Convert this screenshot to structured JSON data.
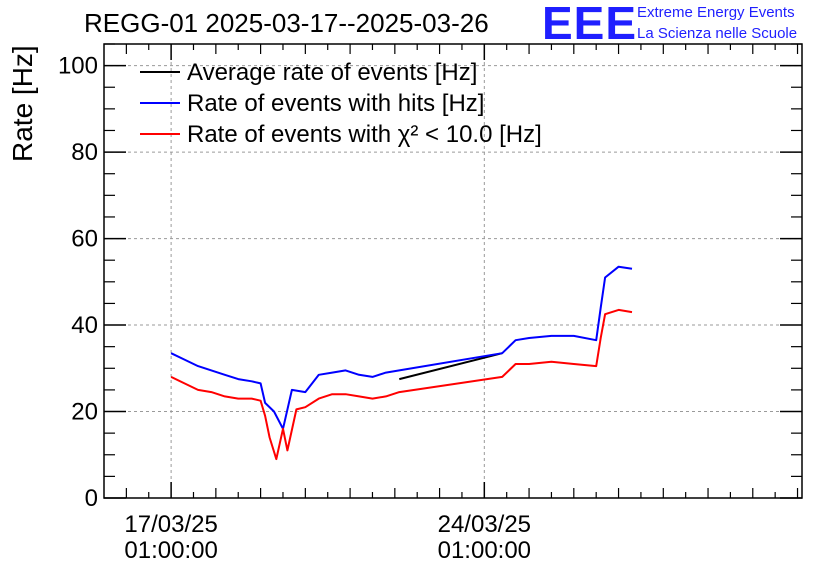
{
  "title": "REGG-01 2025-03-17--2025-03-26",
  "logo": {
    "letters": "EEE",
    "line1": "Extreme Energy Events",
    "line2": "La Scienza nelle Scuole",
    "color": "#1f1fff"
  },
  "chart_data": {
    "type": "line",
    "title": "REGG-01 2025-03-17--2025-03-26",
    "xlabel": "",
    "ylabel": "Rate [Hz]",
    "ylim": [
      0,
      105
    ],
    "xlim": [
      -1.5,
      14.1
    ],
    "x_unit": "days since 17/03/25 01:00:00",
    "grid": true,
    "legend_position": "top-left",
    "y_ticks": [
      0,
      20,
      40,
      60,
      80,
      100
    ],
    "x_ticks": [
      {
        "x": 0,
        "line1": "17/03/25",
        "line2": "01:00:00"
      },
      {
        "x": 7,
        "line1": "24/03/25",
        "line2": "01:00:00"
      }
    ],
    "series": [
      {
        "name": "Average rate of events [Hz]",
        "color": "#000000",
        "x": [
          5.1,
          7.4
        ],
        "y": [
          27.5,
          33.5
        ]
      },
      {
        "name": "Rate of events with hits [Hz]",
        "color": "#0000ff",
        "x": [
          0.0,
          0.3,
          0.6,
          0.9,
          1.2,
          1.5,
          1.8,
          2.0,
          2.1,
          2.3,
          2.5,
          2.7,
          3.0,
          3.3,
          3.6,
          3.9,
          4.2,
          4.5,
          4.8,
          5.1,
          7.4,
          7.7,
          8.0,
          8.5,
          9.0,
          9.5,
          9.6,
          9.7,
          10.0,
          10.3
        ],
        "y": [
          33.5,
          32.0,
          30.5,
          29.5,
          28.5,
          27.5,
          27.0,
          26.5,
          22.0,
          20.0,
          16.0,
          25.0,
          24.5,
          28.5,
          29.0,
          29.5,
          28.5,
          28.0,
          29.0,
          29.5,
          33.5,
          36.5,
          37.0,
          37.5,
          37.5,
          36.5,
          44.0,
          51.0,
          53.5,
          53.0
        ]
      },
      {
        "name": "Rate of events with χ² < 10.0 [Hz]",
        "color": "#ff0000",
        "x": [
          0.0,
          0.3,
          0.6,
          0.9,
          1.2,
          1.5,
          1.8,
          2.0,
          2.1,
          2.2,
          2.35,
          2.5,
          2.6,
          2.8,
          3.0,
          3.3,
          3.6,
          3.9,
          4.2,
          4.5,
          4.8,
          5.1,
          7.4,
          7.7,
          8.0,
          8.5,
          9.0,
          9.5,
          9.6,
          9.7,
          10.0,
          10.3
        ],
        "y": [
          28.0,
          26.5,
          25.0,
          24.5,
          23.5,
          23.0,
          23.0,
          22.5,
          19.0,
          14.0,
          9.0,
          16.0,
          11.0,
          20.5,
          21.0,
          23.0,
          24.0,
          24.0,
          23.5,
          23.0,
          23.5,
          24.5,
          28.0,
          31.0,
          31.0,
          31.5,
          31.0,
          30.5,
          37.0,
          42.5,
          43.5,
          43.0
        ]
      }
    ]
  }
}
